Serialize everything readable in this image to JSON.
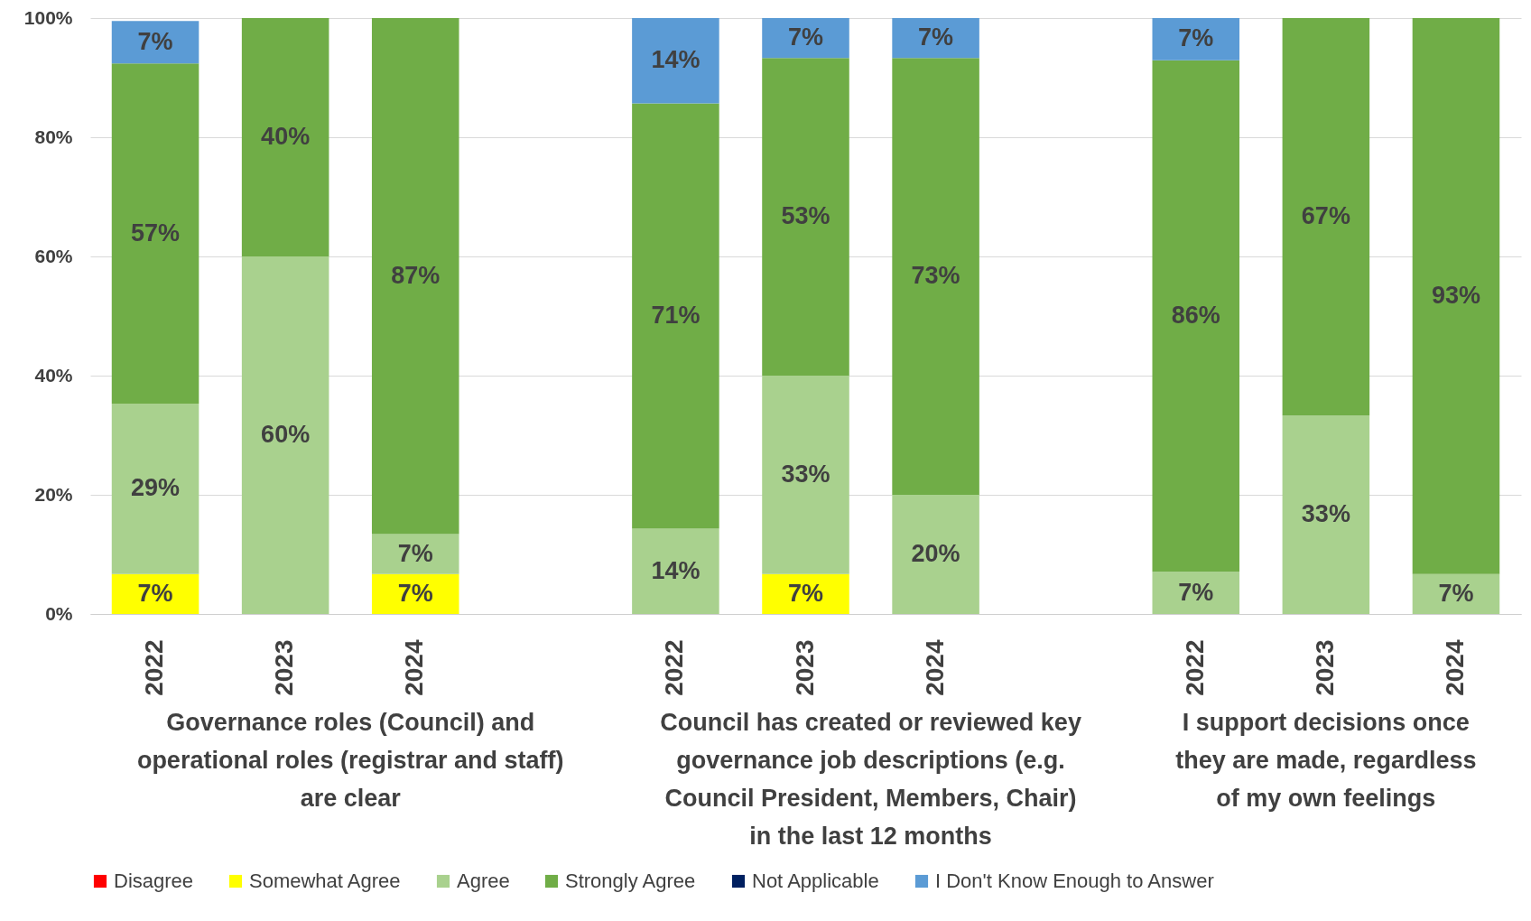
{
  "chart_data": {
    "type": "bar",
    "stacked": true,
    "categories": [
      "2022",
      "2023",
      "2024",
      null,
      "2022",
      "2023",
      "2024",
      null,
      "2022",
      "2023",
      "2024"
    ],
    "series": [
      {
        "name": "Disagree",
        "color": "#ff0000",
        "values": [
          null,
          null,
          null,
          null,
          null,
          null,
          null,
          null,
          null,
          null,
          null
        ]
      },
      {
        "name": "Somewhat Agree",
        "color": "#ffff00",
        "values": [
          6.7,
          null,
          6.7,
          null,
          null,
          6.7,
          null,
          null,
          null,
          null,
          null
        ],
        "value_labels": [
          "7%",
          null,
          "7%",
          null,
          null,
          "7%",
          null,
          null,
          null,
          null,
          null
        ]
      },
      {
        "name": "Agree",
        "color": "#a9d18e",
        "values": [
          28.6,
          60,
          6.7,
          null,
          14.3,
          33.3,
          20,
          null,
          7.1,
          33.3,
          6.7
        ],
        "value_labels": [
          "29%",
          "60%",
          "7%",
          null,
          "14%",
          "33%",
          "20%",
          null,
          "7%",
          "33%",
          "7%"
        ]
      },
      {
        "name": "Strongly Agree",
        "color": "#70ad47",
        "values": [
          57.1,
          40,
          86.6,
          null,
          71.4,
          53.3,
          73.3,
          null,
          85.8,
          66.7,
          93.3
        ],
        "value_labels": [
          "57%",
          "40%",
          "87%",
          null,
          "71%",
          "53%",
          "73%",
          null,
          "86%",
          "67%",
          "93%"
        ]
      },
      {
        "name": "Not Applicable",
        "color": "#002060",
        "values": [
          null,
          null,
          null,
          null,
          null,
          null,
          null,
          null,
          null,
          null,
          null
        ]
      },
      {
        "name": "I Don't Know Enough to Answer",
        "color": "#5b9bd5",
        "values": [
          7.1,
          null,
          null,
          null,
          14.3,
          6.7,
          6.7,
          null,
          7.1,
          null,
          null
        ],
        "value_labels": [
          "7%",
          null,
          null,
          null,
          "14%",
          "7%",
          "7%",
          null,
          "7%",
          null,
          null
        ]
      }
    ],
    "ylim": [
      0,
      100
    ],
    "yticks": [
      {
        "value": 0,
        "label": "0%"
      },
      {
        "value": 20,
        "label": "20%"
      },
      {
        "value": 40,
        "label": "40%"
      },
      {
        "value": 60,
        "label": "60%"
      },
      {
        "value": 80,
        "label": "80%"
      },
      {
        "value": 100,
        "label": "100%"
      }
    ],
    "annotations": [
      "Governance roles (Council) and\noperational roles (registrar and staff)\nare clear",
      "Council has created or reviewed key\ngovernance job descriptions (e.g.\nCouncil President, Members, Chair)\nin the last 12 months",
      "I support decisions once\nthey are made, regardless\nof my own feelings"
    ],
    "grid": "y",
    "legend": "bottom"
  }
}
